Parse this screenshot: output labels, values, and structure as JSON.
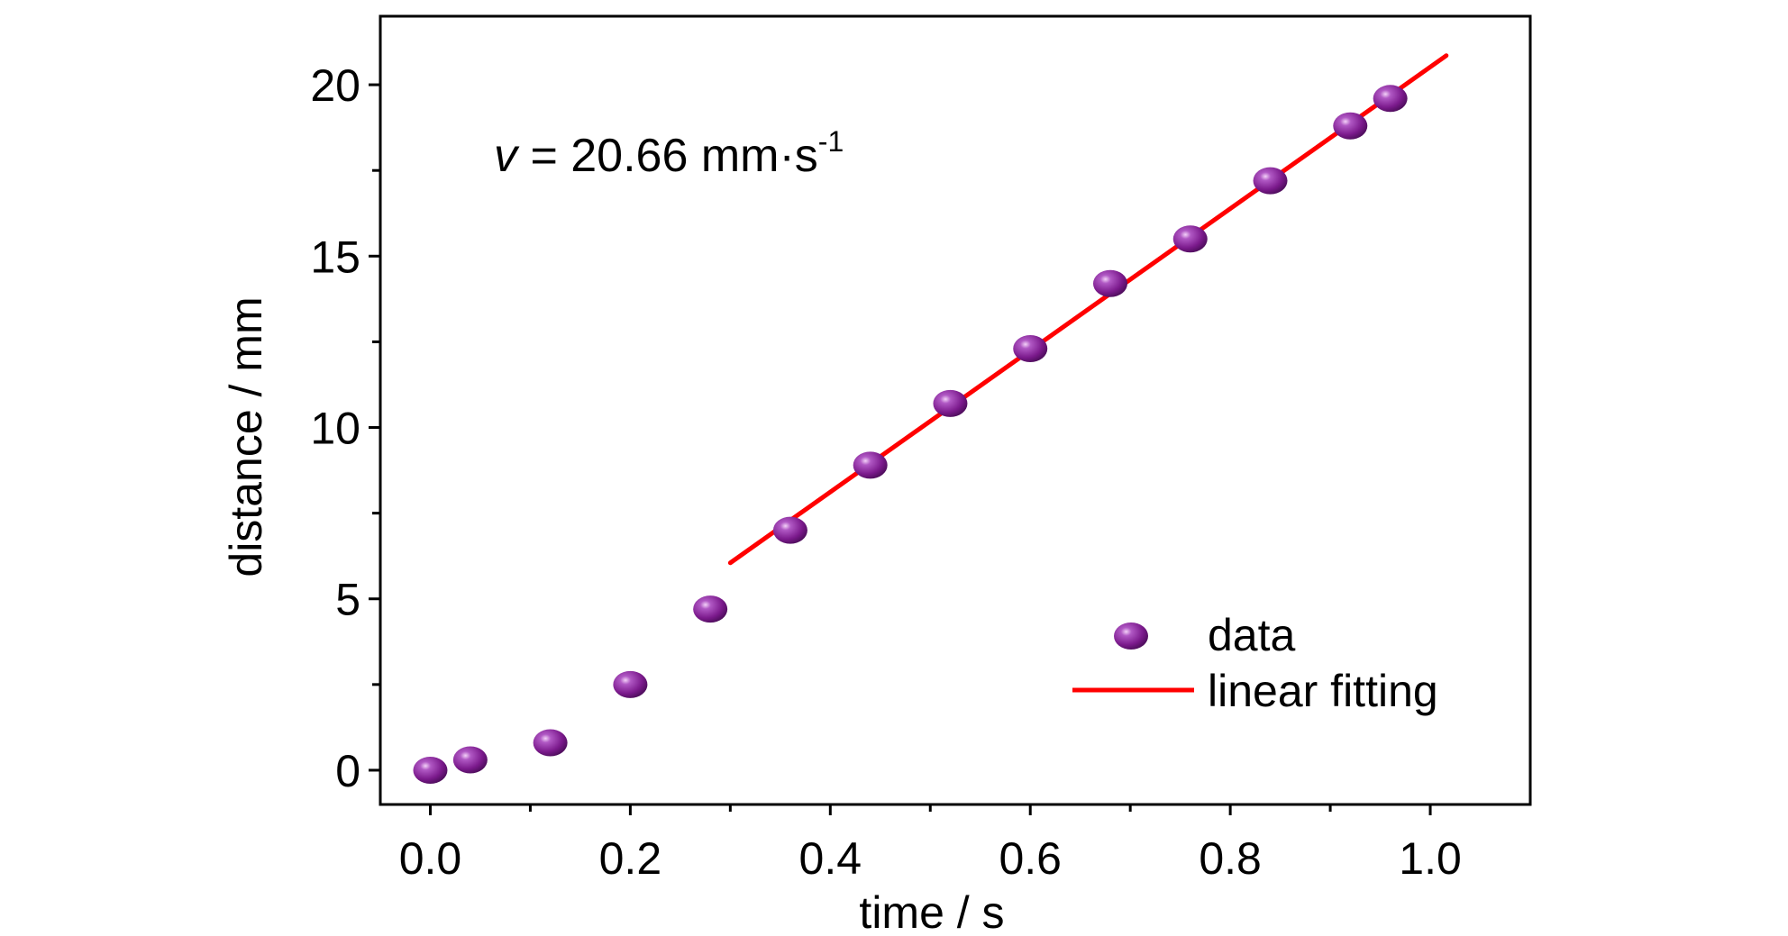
{
  "chart_data": {
    "type": "scatter",
    "title": "",
    "xlabel": "time / s",
    "ylabel": "distance / mm",
    "xlim": [
      -0.05,
      1.1
    ],
    "ylim": [
      -1,
      22
    ],
    "xticks": [
      0.0,
      0.2,
      0.4,
      0.6,
      0.8,
      1.0
    ],
    "xtick_labels": [
      "0.0",
      "0.2",
      "0.4",
      "0.6",
      "0.8",
      "1.0"
    ],
    "yticks": [
      0,
      5,
      10,
      15,
      20
    ],
    "ytick_labels": [
      "0",
      "5",
      "10",
      "15",
      "20"
    ],
    "grid": false,
    "legend_position": "lower-right",
    "annotation": {
      "symbol": "v",
      "text": " = 20.66 mm·s",
      "superscript": "-1"
    },
    "series": [
      {
        "name": "data",
        "kind": "scatter",
        "color": "#7b1a8c",
        "x": [
          0.0,
          0.04,
          0.12,
          0.2,
          0.28,
          0.36,
          0.44,
          0.52,
          0.6,
          0.68,
          0.76,
          0.84,
          0.92,
          0.96
        ],
        "y": [
          0.0,
          0.3,
          0.8,
          2.5,
          4.7,
          7.0,
          8.9,
          10.7,
          12.3,
          14.2,
          15.5,
          17.2,
          18.8,
          19.6
        ]
      },
      {
        "name": "linear fitting",
        "kind": "line",
        "color": "#ff0000",
        "x": [
          0.3,
          1.016
        ],
        "y": [
          6.05,
          20.85
        ]
      }
    ]
  }
}
